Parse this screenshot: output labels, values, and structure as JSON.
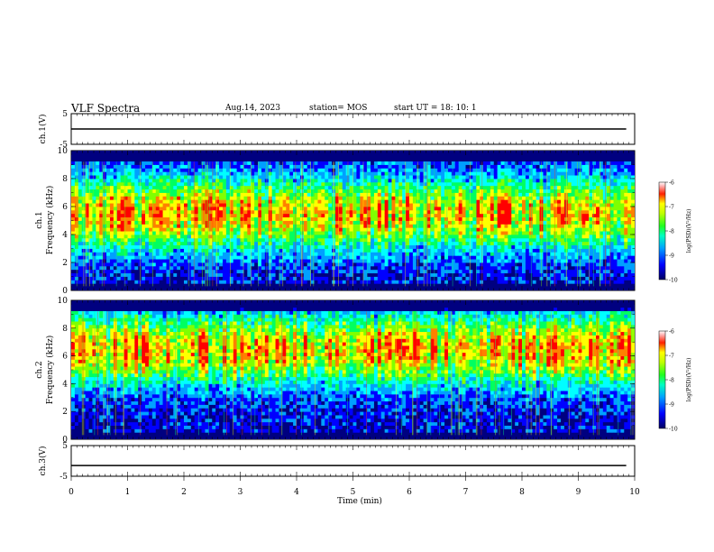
{
  "header": {
    "title": "VLF Spectra",
    "date": "Aug.14, 2023",
    "station": "station= MOS",
    "start_ut": "start  UT =   18: 10: 1"
  },
  "colors": {
    "spectrogram_scale": [
      "#000080",
      "#0000ff",
      "#00a0ff",
      "#00ffff",
      "#00ff60",
      "#80ff00",
      "#ffff00",
      "#ff8000",
      "#ff0000",
      "#ffffff"
    ]
  },
  "chart_data": [
    {
      "type": "line",
      "name_label": "ch.1(V)",
      "ylim": [
        -5,
        5
      ],
      "yticks": [
        "5",
        "-5"
      ],
      "x": [
        0,
        9.85
      ],
      "values": [
        0,
        0
      ]
    },
    {
      "type": "heatmap",
      "ylabel_line1": "ch.1",
      "ylabel_line2": "Frequency  (kHz)",
      "ylim": [
        0,
        10
      ],
      "yticks": [
        "0",
        "2",
        "4",
        "6",
        "8",
        "10"
      ],
      "xlim": [
        0,
        9.85
      ],
      "band_center_khz": 5.5,
      "colorbar": {
        "label": "log(PSD)(V²/Hz)",
        "range": [
          -10,
          -6
        ],
        "ticks": [
          "-6",
          "-7",
          "-8",
          "-9",
          "-10"
        ]
      }
    },
    {
      "type": "heatmap",
      "ylabel_line1": "ch.2",
      "ylabel_line2": "Frequency  (kHz)",
      "ylim": [
        0,
        10
      ],
      "yticks": [
        "0",
        "2",
        "4",
        "6",
        "8",
        "10"
      ],
      "xlim": [
        0,
        9.85
      ],
      "band_center_khz": 6.5,
      "colorbar": {
        "label": "log(PSD)(V²/Hz)",
        "range": [
          -10,
          -6
        ],
        "ticks": [
          "-6",
          "-7",
          "-8",
          "-9",
          "-10"
        ]
      }
    },
    {
      "type": "line",
      "name_label": "ch.3(V)",
      "ylim": [
        -5,
        5
      ],
      "yticks": [
        "5",
        "-5"
      ],
      "x": [
        0,
        9.85
      ],
      "values": [
        -1.5,
        -1.5
      ]
    }
  ],
  "xaxis": {
    "label": "Time  (min)",
    "range": [
      0,
      10
    ],
    "ticks": [
      "0",
      "1",
      "2",
      "3",
      "4",
      "5",
      "6",
      "7",
      "8",
      "9",
      "10"
    ]
  }
}
